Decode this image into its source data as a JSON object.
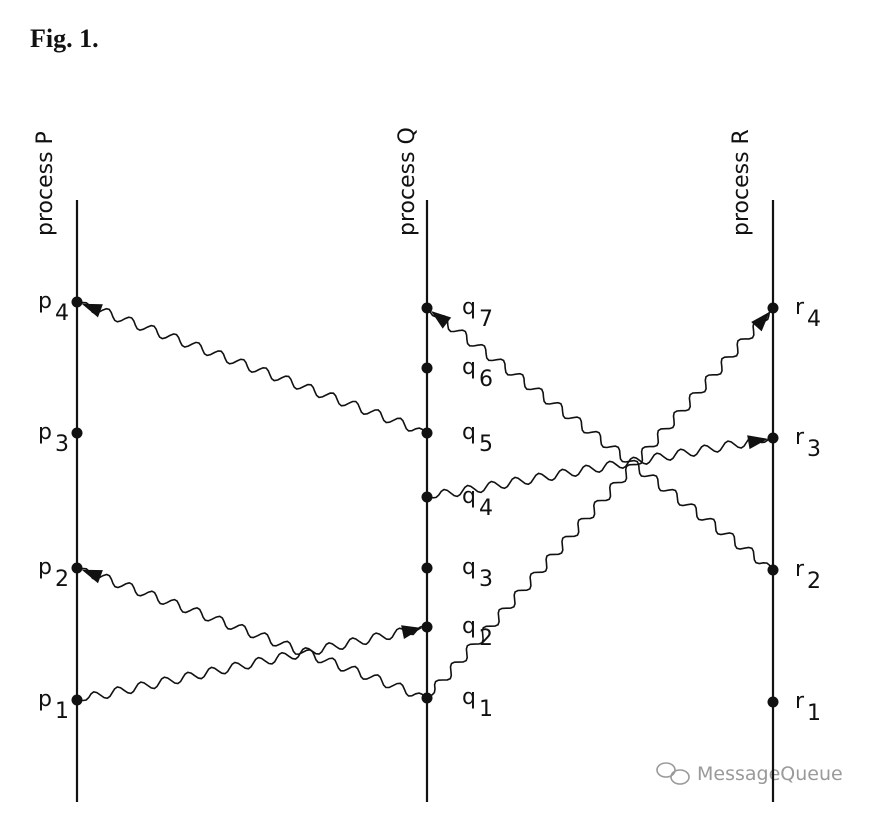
{
  "figure": {
    "title": "Fig. 1.",
    "processes": [
      {
        "label": "process P",
        "events": [
          {
            "letter": "p",
            "sub": "1"
          },
          {
            "letter": "p",
            "sub": "2"
          },
          {
            "letter": "p",
            "sub": "3"
          },
          {
            "letter": "p",
            "sub": "4"
          }
        ]
      },
      {
        "label": "process Q",
        "events": [
          {
            "letter": "q",
            "sub": "1"
          },
          {
            "letter": "q",
            "sub": "2"
          },
          {
            "letter": "q",
            "sub": "3"
          },
          {
            "letter": "q",
            "sub": "4"
          },
          {
            "letter": "q",
            "sub": "5"
          },
          {
            "letter": "q",
            "sub": "6"
          },
          {
            "letter": "q",
            "sub": "7"
          }
        ]
      },
      {
        "label": "process R",
        "events": [
          {
            "letter": "r",
            "sub": "1"
          },
          {
            "letter": "r",
            "sub": "2"
          },
          {
            "letter": "r",
            "sub": "3"
          },
          {
            "letter": "r",
            "sub": "4"
          }
        ]
      }
    ]
  },
  "watermark": "MessageQueue"
}
